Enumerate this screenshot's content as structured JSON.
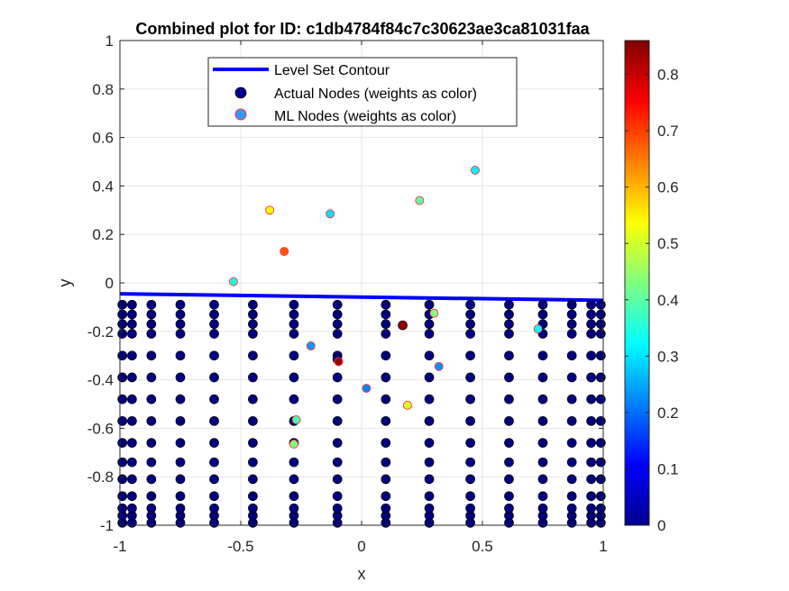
{
  "chart_data": {
    "type": "scatter",
    "title": "Combined plot for ID: c1db4784f84c7c30623ae3ca81031faa",
    "xlabel": "x",
    "ylabel": "y",
    "xlim": [
      -1,
      1
    ],
    "ylim": [
      -1,
      1
    ],
    "x_ticks": [
      "-1",
      "-0.5",
      "0",
      "0.5",
      "1"
    ],
    "y_ticks": [
      "-1",
      "-0.8",
      "-0.6",
      "-0.4",
      "-0.2",
      "0",
      "0.2",
      "0.4",
      "0.6",
      "0.8",
      "1"
    ],
    "grid": true,
    "legend_position": "top-center",
    "legend": [
      {
        "label": "Level Set Contour",
        "kind": "line",
        "color": "#0000ff"
      },
      {
        "label": "Actual Nodes (weights as color)",
        "kind": "marker",
        "color": "#00008f"
      },
      {
        "label": "ML Nodes (weights as color)",
        "kind": "marker",
        "color": "#3399ff",
        "edge": "#ff3333"
      }
    ],
    "colorbar": {
      "colormap": "jet",
      "range": [
        0,
        0.86
      ],
      "ticks": [
        "0",
        "0.1",
        "0.2",
        "0.3",
        "0.4",
        "0.5",
        "0.6",
        "0.7",
        "0.8"
      ]
    },
    "contour": {
      "x": [
        -1,
        1
      ],
      "y": [
        -0.045,
        -0.072
      ]
    },
    "actual_nodes": {
      "columns_x": [
        -0.99,
        -0.95,
        -0.87,
        -0.75,
        -0.61,
        -0.45,
        -0.28,
        -0.1,
        0.1,
        0.28,
        0.45,
        0.61,
        0.75,
        0.87,
        0.95,
        0.99
      ],
      "rows_y": [
        -0.99,
        -0.96,
        -0.93,
        -0.88,
        -0.81,
        -0.74,
        -0.66,
        -0.57,
        -0.48,
        -0.39,
        -0.3,
        -0.21,
        -0.17,
        -0.13,
        -0.09
      ],
      "weight": 0.0,
      "extra": [
        {
          "x": 0.17,
          "y": -0.175,
          "weight": 0.84
        },
        {
          "x": -0.1,
          "y": -0.315,
          "weight": 0.02
        }
      ]
    },
    "ml_nodes": [
      {
        "x": -0.38,
        "y": 0.3,
        "weight": 0.53
      },
      {
        "x": -0.32,
        "y": 0.13,
        "weight": 0.68
      },
      {
        "x": -0.13,
        "y": 0.285,
        "weight": 0.3
      },
      {
        "x": 0.24,
        "y": 0.34,
        "weight": 0.4
      },
      {
        "x": 0.47,
        "y": 0.465,
        "weight": 0.31
      },
      {
        "x": -0.53,
        "y": 0.005,
        "weight": 0.35
      },
      {
        "x": 0.3,
        "y": -0.125,
        "weight": 0.43
      },
      {
        "x": 0.73,
        "y": -0.19,
        "weight": 0.32
      },
      {
        "x": -0.21,
        "y": -0.26,
        "weight": 0.24
      },
      {
        "x": -0.095,
        "y": -0.325,
        "weight": 0.84
      },
      {
        "x": 0.32,
        "y": -0.345,
        "weight": 0.23
      },
      {
        "x": 0.02,
        "y": -0.435,
        "weight": 0.22
      },
      {
        "x": 0.19,
        "y": -0.505,
        "weight": 0.51
      },
      {
        "x": -0.27,
        "y": -0.565,
        "weight": 0.38
      },
      {
        "x": -0.28,
        "y": -0.665,
        "weight": 0.43
      }
    ]
  }
}
